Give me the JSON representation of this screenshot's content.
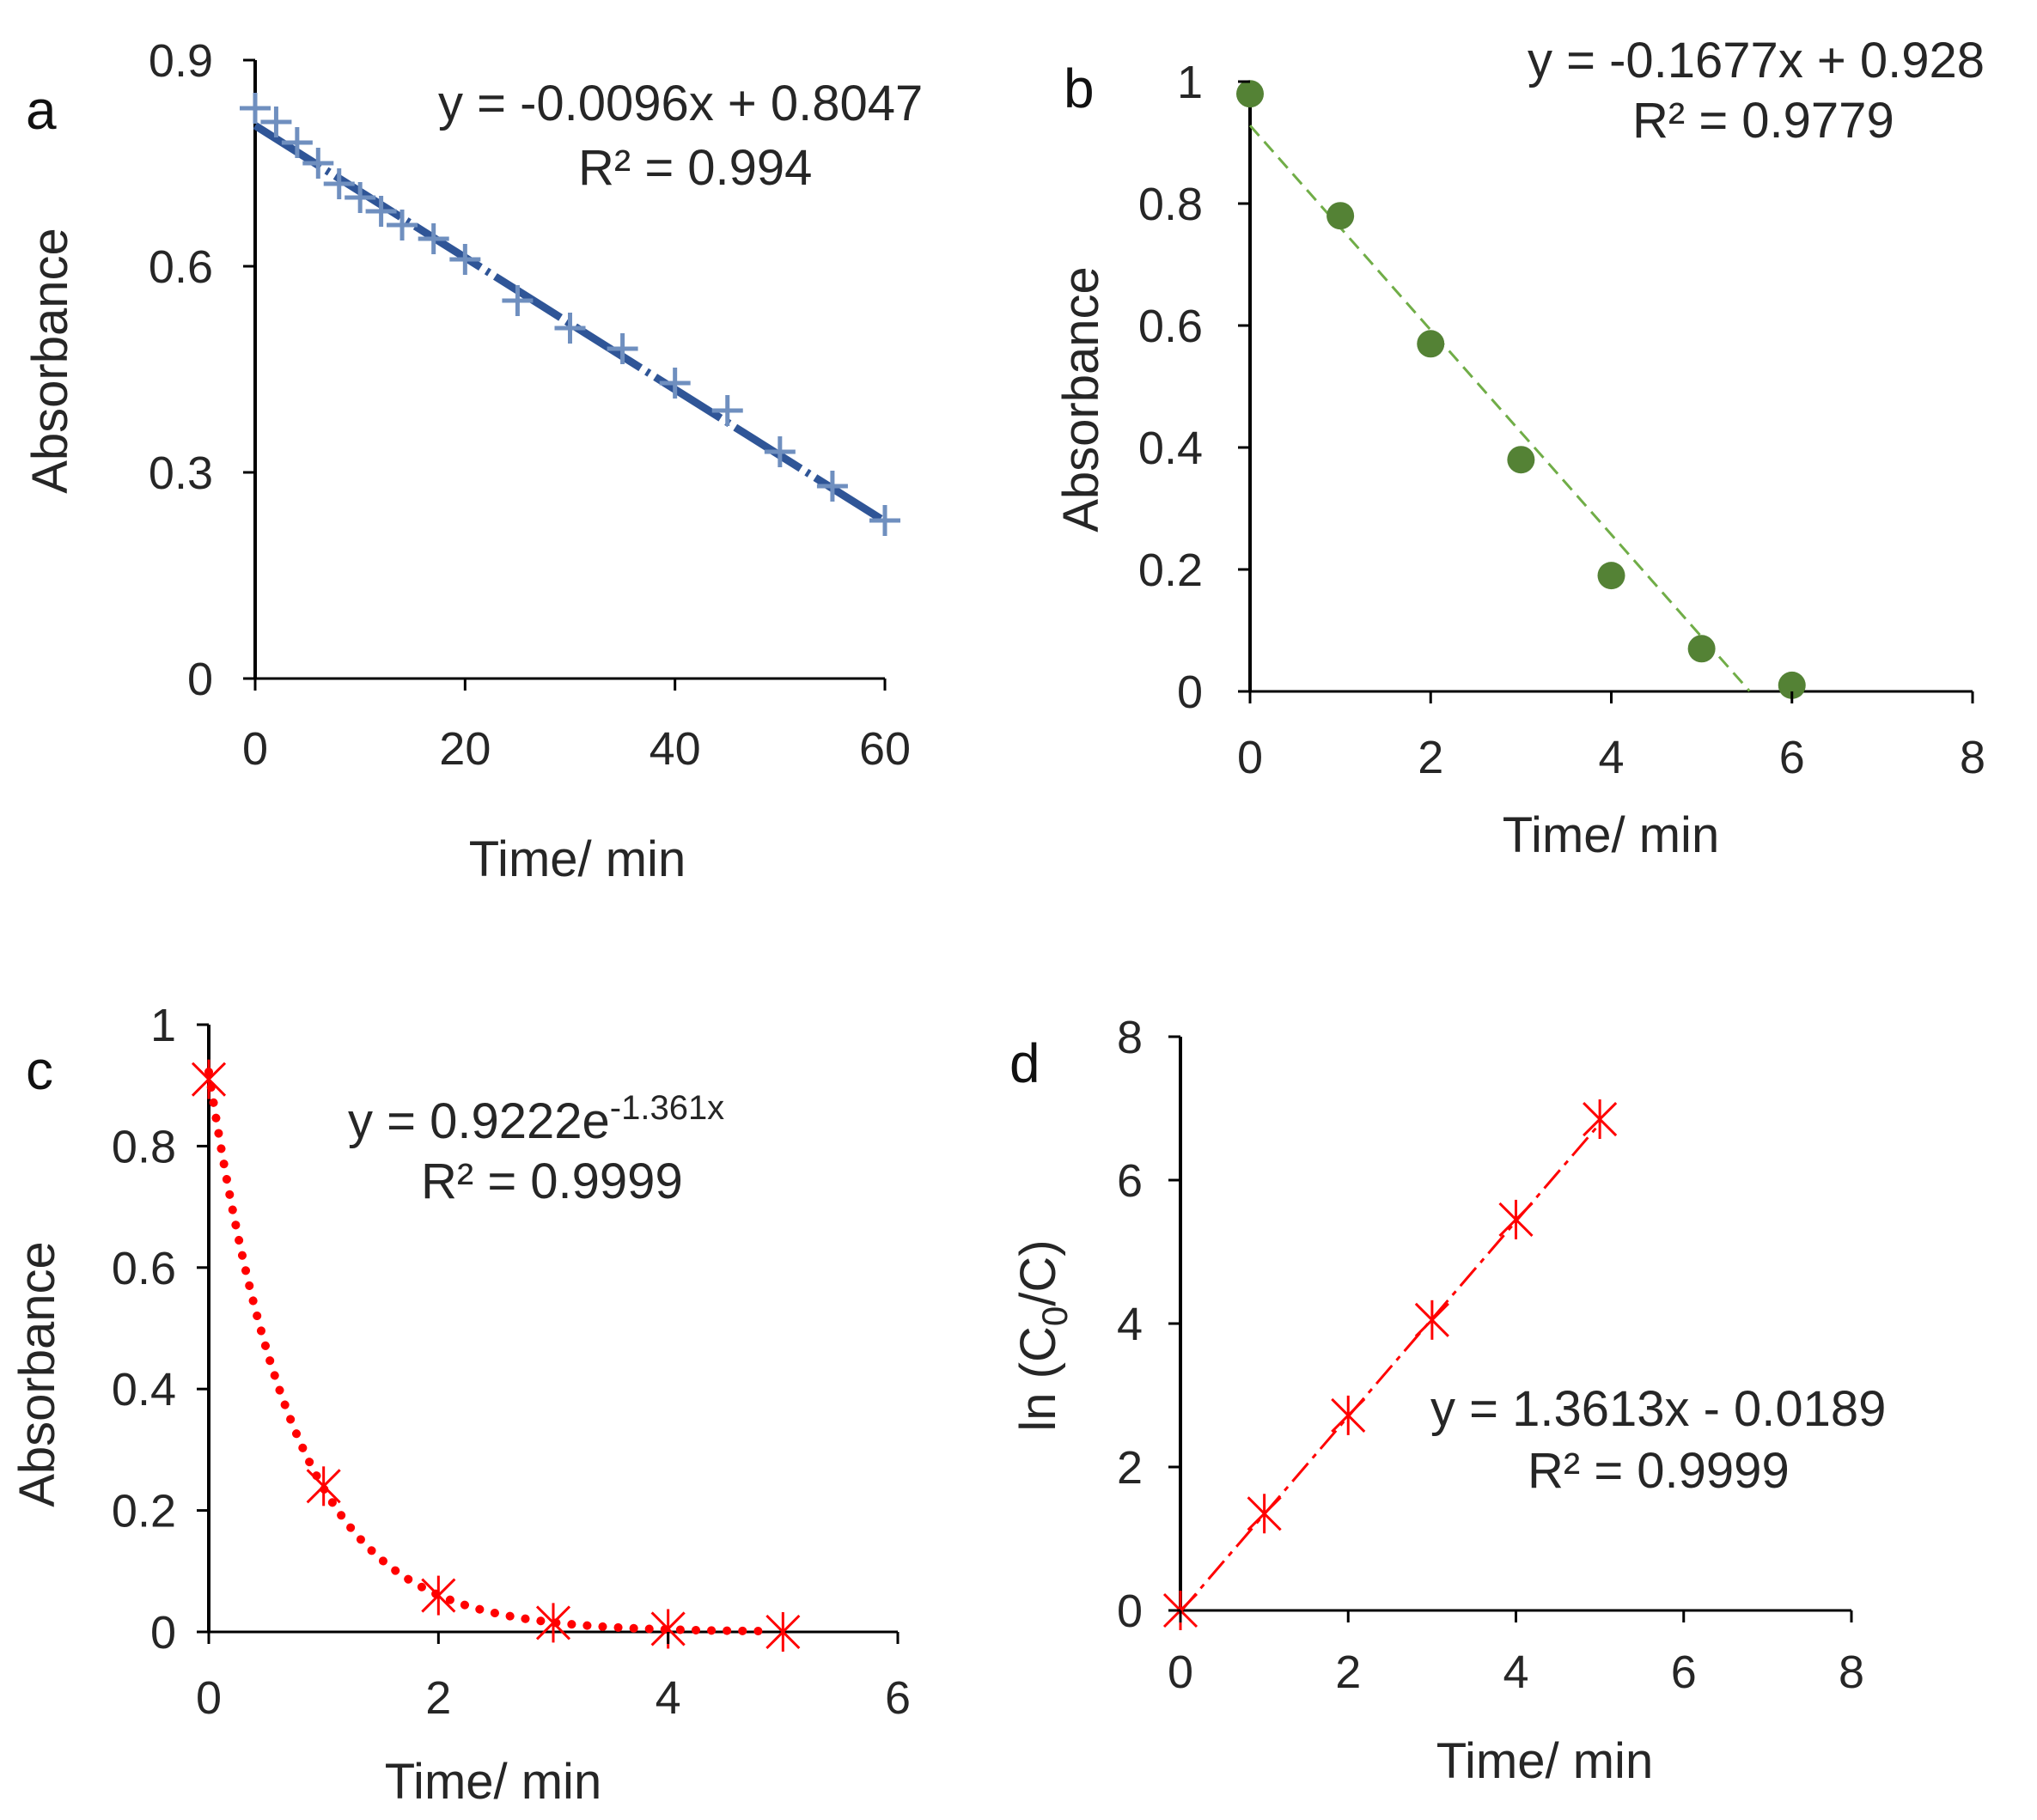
{
  "chart_data": [
    {
      "type": "scatter",
      "panel_label": "a",
      "xlabel": "Time/ min",
      "ylabel": "Absorbance",
      "xlim": [
        0,
        60
      ],
      "ylim": [
        0,
        0.9
      ],
      "xticks": [
        "0",
        "20",
        "40",
        "60"
      ],
      "yticks": [
        "0",
        "0.3",
        "0.6",
        "0.9"
      ],
      "marker": "plus",
      "colors": {
        "marker": "#6f8fbf",
        "trend": "#2f5597"
      },
      "series": [
        {
          "name": "Absorbance",
          "x": [
            0,
            2,
            4,
            6,
            8,
            10,
            12,
            14,
            17,
            20,
            25,
            30,
            35,
            40,
            45,
            50,
            55,
            60
          ],
          "y": [
            0.83,
            0.81,
            0.78,
            0.75,
            0.72,
            0.7,
            0.68,
            0.66,
            0.64,
            0.61,
            0.55,
            0.51,
            0.48,
            0.43,
            0.39,
            0.33,
            0.28,
            0.23
          ]
        }
      ],
      "trendline": {
        "kind": "linear",
        "slope": -0.0096,
        "intercept": 0.8047,
        "x_range": [
          0,
          60
        ]
      },
      "equation": "y = -0.0096x  + 0.8047",
      "r2": "R² = 0.994"
    },
    {
      "type": "scatter",
      "panel_label": "b",
      "xlabel": "Time/ min",
      "ylabel": "Absorbance",
      "xlim": [
        0,
        8
      ],
      "ylim": [
        0,
        1
      ],
      "xticks": [
        "0",
        "2",
        "4",
        "6",
        "8"
      ],
      "yticks": [
        "0",
        "0.2",
        "0.4",
        "0.6",
        "0.8",
        "1"
      ],
      "marker": "circle",
      "colors": {
        "marker": "#548235",
        "trend": "#70ad47"
      },
      "series": [
        {
          "name": "Absorbance",
          "x": [
            0,
            1,
            2,
            3,
            4,
            5,
            6
          ],
          "y": [
            0.98,
            0.78,
            0.57,
            0.38,
            0.19,
            0.07,
            0.01
          ]
        }
      ],
      "trendline": {
        "kind": "linear",
        "slope": -0.1677,
        "intercept": 0.928,
        "x_range": [
          0,
          5.53
        ]
      },
      "equation": "y = -0.1677x  + 0.928",
      "r2": "R² = 0.9779"
    },
    {
      "type": "scatter",
      "panel_label": "c",
      "xlabel": "Time/ min",
      "ylabel": "Absorbance",
      "xlim": [
        0,
        6
      ],
      "ylim": [
        0,
        1
      ],
      "xticks": [
        "0",
        "2",
        "4",
        "6"
      ],
      "yticks": [
        "0",
        "0.2",
        "0.4",
        "0.6",
        "0.8",
        "1"
      ],
      "marker": "asterisk",
      "colors": {
        "marker": "#ff0000",
        "trend": "#ff0000"
      },
      "series": [
        {
          "name": "Absorbance",
          "x": [
            0,
            1,
            2,
            3,
            4,
            5
          ],
          "y": [
            0.91,
            0.24,
            0.06,
            0.015,
            0.005,
            0.0
          ]
        }
      ],
      "trendline": {
        "kind": "exponential",
        "a": 0.9222,
        "b": -1.361,
        "x_range": [
          0,
          4.85
        ]
      },
      "equation_base": "y = 0.9222e",
      "equation_exponent": "-1.361x",
      "r2": "R² = 0.9999"
    },
    {
      "type": "scatter",
      "panel_label": "d",
      "xlabel": "Time/ min",
      "ylabel_main": "ln (C",
      "ylabel_sub": "0",
      "ylabel_tail": "/C)",
      "xlim": [
        0,
        8
      ],
      "ylim": [
        0,
        8
      ],
      "xticks": [
        "0",
        "2",
        "4",
        "6",
        "8"
      ],
      "yticks": [
        "0",
        "2",
        "4",
        "6",
        "8"
      ],
      "marker": "asterisk",
      "colors": {
        "marker": "#ff0000",
        "trend": "#ff0000"
      },
      "series": [
        {
          "name": "ln(C0/C)",
          "x": [
            0,
            1,
            2,
            3,
            4,
            5
          ],
          "y": [
            0.0,
            1.35,
            2.72,
            4.05,
            5.45,
            6.85
          ]
        }
      ],
      "trendline": {
        "kind": "linear",
        "slope": 1.3613,
        "intercept": -0.0189,
        "x_range": [
          0,
          5
        ]
      },
      "equation": "y = 1.3613x  - 0.0189",
      "r2": "R² = 0.9999"
    }
  ]
}
